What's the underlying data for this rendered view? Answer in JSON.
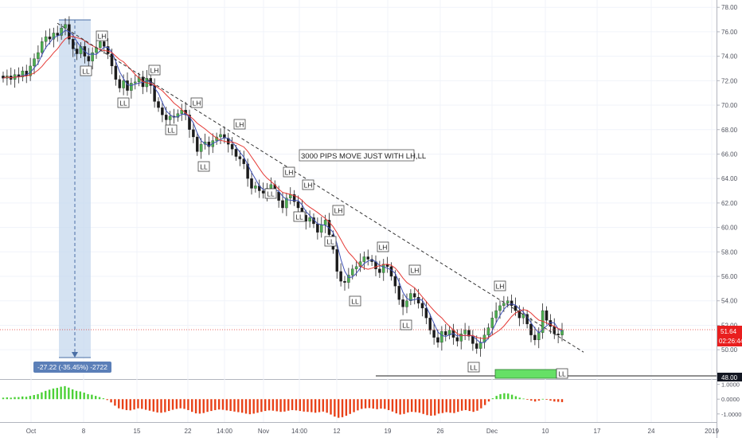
{
  "chart_data": {
    "type": "candlestick",
    "y_ticks": [
      "78.00",
      "76.00",
      "74.00",
      "72.00",
      "70.00",
      "68.00",
      "66.00",
      "64.00",
      "62.00",
      "60.00",
      "58.00",
      "56.00",
      "54.00",
      "52.00",
      "50.00"
    ],
    "x_ticks": [
      "Oct",
      "8",
      "15",
      "22",
      "14:00",
      "Nov",
      "14:00",
      "12",
      "19",
      "26",
      "Dec",
      "10",
      "17",
      "24",
      "2019"
    ],
    "ylim": [
      47.6,
      78.6
    ],
    "price": {
      "current": "51.64",
      "countdown": "02:26:44",
      "level": "48.00",
      "level_value": 48.0,
      "current_value": 51.64
    },
    "annotation": "3000 PIPS MOVE JUST WITH LH,LL",
    "measure_label": "-27.22 (-35.45%) -2722",
    "trend_line": {
      "start": [
        76.7,
        "Oct 5"
      ],
      "end": [
        50.2,
        "Dec 14"
      ]
    },
    "close_series": [
      72.2,
      72.4,
      72.1,
      72.5,
      72.3,
      72.8,
      72.4,
      73.2,
      73.8,
      74.3,
      75.2,
      75.6,
      75.4,
      75.9,
      75.7,
      76.3,
      76.6,
      75.4,
      74.6,
      74.2,
      74.8,
      74.0,
      73.6,
      74.3,
      74.7,
      75.2,
      74.8,
      74.2,
      73.2,
      72.1,
      71.4,
      72.0,
      71.2,
      71.8,
      71.9,
      72.3,
      71.5,
      72.2,
      71.6,
      70.3,
      69.8,
      69.2,
      68.8,
      69.1,
      69.0,
      69.3,
      69.6,
      69.2,
      68.0,
      67.4,
      66.2,
      66.8,
      67.0,
      66.6,
      67.1,
      67.4,
      67.6,
      67.3,
      66.8,
      66.4,
      65.8,
      65.6,
      65.2,
      64.0,
      63.2,
      63.4,
      63.0,
      62.8,
      63.2,
      63.5,
      62.9,
      62.2,
      61.6,
      62.4,
      62.7,
      62.1,
      61.6,
      61.0,
      60.5,
      60.8,
      60.3,
      59.6,
      60.2,
      60.6,
      59.4,
      58.2,
      56.4,
      55.6,
      55.5,
      56.1,
      56.6,
      56.8,
      57.2,
      57.6,
      57.4,
      57.2,
      56.6,
      56.3,
      57.0,
      56.8,
      56.0,
      55.2,
      54.1,
      53.5,
      54.0,
      54.6,
      54.3,
      53.8,
      53.4,
      52.6,
      51.6,
      51.0,
      50.6,
      51.5,
      51.2,
      51.6,
      51.0,
      50.7,
      51.3,
      51.6,
      51.1,
      50.5,
      50.1,
      50.6,
      51.2,
      51.8,
      52.6,
      53.2,
      53.6,
      53.8,
      54.0,
      53.6,
      53.2,
      52.6,
      52.9,
      52.1,
      51.2,
      50.8,
      51.4,
      53.2,
      52.4,
      51.9,
      51.3,
      51.2,
      51.6
    ],
    "lows_ll": [
      {
        "label": "LL",
        "value": 74.0
      },
      {
        "label": "LL",
        "value": 70.5
      },
      {
        "label": "LL",
        "value": 68.5
      },
      {
        "label": "LL",
        "value": 65.5
      },
      {
        "label": "LL",
        "value": 63.0
      },
      {
        "label": "LL",
        "value": 61.2
      },
      {
        "label": "LL",
        "value": 59.7
      },
      {
        "label": "LL",
        "value": 55.2
      },
      {
        "label": "LL",
        "value": 52.8
      },
      {
        "label": "LL",
        "value": 49.6
      },
      {
        "label": "LL",
        "value": 47.9
      }
    ],
    "highs_lh": [
      {
        "label": "LH",
        "value": 75.3
      },
      {
        "label": "LH",
        "value": 72.1
      },
      {
        "label": "LH",
        "value": 69.7
      },
      {
        "label": "LH",
        "value": 67.8
      },
      {
        "label": "LH",
        "value": 63.6
      },
      {
        "label": "LH",
        "value": 62.9
      },
      {
        "label": "LH",
        "value": 61.1
      },
      {
        "label": "LH",
        "value": 57.8
      },
      {
        "label": "LH",
        "value": 56.9
      },
      {
        "label": "LH",
        "value": 54.1
      }
    ],
    "oscillator": {
      "ticks": [
        "1.0000",
        "0.0000",
        "-1.0000"
      ],
      "ylim": [
        -1.55,
        1.25
      ],
      "values": [
        0.1,
        0.12,
        0.1,
        0.14,
        0.14,
        0.18,
        0.16,
        0.22,
        0.28,
        0.34,
        0.46,
        0.56,
        0.64,
        0.72,
        0.76,
        0.84,
        0.88,
        0.78,
        0.66,
        0.56,
        0.52,
        0.44,
        0.34,
        0.3,
        0.22,
        0.14,
        0.06,
        -0.06,
        -0.22,
        -0.44,
        -0.62,
        -0.68,
        -0.74,
        -0.76,
        -0.7,
        -0.62,
        -0.66,
        -0.72,
        -0.78,
        -0.84,
        -0.9,
        -0.92,
        -0.88,
        -0.8,
        -0.72,
        -0.66,
        -0.62,
        -0.66,
        -0.74,
        -0.86,
        -0.96,
        -0.98,
        -0.94,
        -0.86,
        -0.8,
        -0.74,
        -0.7,
        -0.72,
        -0.76,
        -0.8,
        -0.84,
        -0.88,
        -0.92,
        -0.98,
        -1.02,
        -0.98,
        -0.92,
        -0.86,
        -0.8,
        -0.76,
        -0.78,
        -0.82,
        -0.86,
        -0.84,
        -0.78,
        -0.74,
        -0.76,
        -0.8,
        -0.84,
        -0.86,
        -0.88,
        -0.92,
        -0.88,
        -0.84,
        -0.92,
        -1.04,
        -1.18,
        -1.26,
        -1.22,
        -1.12,
        -1.0,
        -0.88,
        -0.76,
        -0.66,
        -0.62,
        -0.6,
        -0.64,
        -0.68,
        -0.64,
        -0.66,
        -0.74,
        -0.84,
        -0.96,
        -1.04,
        -1.0,
        -0.9,
        -0.86,
        -0.88,
        -0.92,
        -1.0,
        -1.08,
        -1.12,
        -1.1,
        -0.98,
        -0.94,
        -0.88,
        -0.92,
        -0.94,
        -0.86,
        -0.78,
        -0.74,
        -0.8,
        -0.86,
        -0.78,
        -0.62,
        -0.4,
        -0.16,
        0.06,
        0.22,
        0.34,
        0.4,
        0.38,
        0.3,
        0.2,
        0.1,
        0.04,
        -0.02,
        -0.1,
        -0.16,
        -0.1,
        0.02,
        -0.04,
        -0.1,
        -0.16,
        -0.18,
        -0.2
      ]
    }
  }
}
